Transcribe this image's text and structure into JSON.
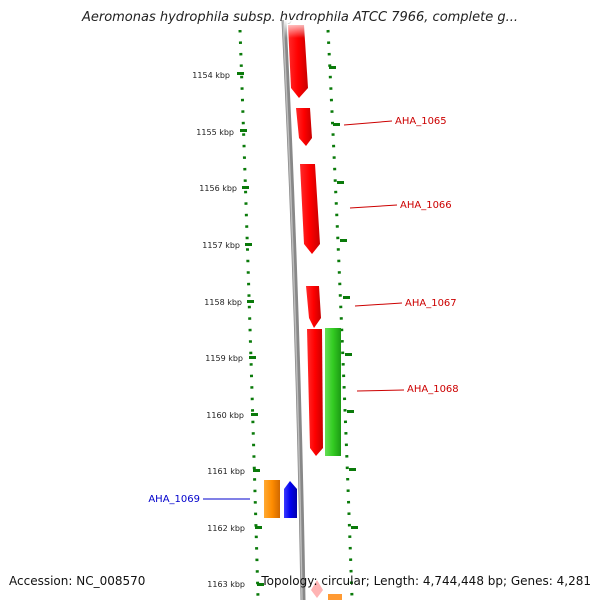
{
  "title": "Aeromonas hydrophila subsp. hydrophila ATCC 7966, complete g...",
  "ruler": {
    "unit": "kbp",
    "ticks": [
      "1154 kbp",
      "1155 kbp",
      "1156 kbp",
      "1157 kbp",
      "1158 kbp",
      "1159 kbp",
      "1160 kbp",
      "1161 kbp",
      "1162 kbp",
      "1163 kbp"
    ]
  },
  "genes": [
    {
      "label": "AHA_1065",
      "color": "#cc0000"
    },
    {
      "label": "AHA_1066",
      "color": "#cc0000"
    },
    {
      "label": "AHA_1067",
      "color": "#cc0000"
    },
    {
      "label": "AHA_1068",
      "color": "#cc0000"
    },
    {
      "label": "AHA_1069",
      "color": "#0000cc"
    }
  ],
  "footer": {
    "accession": "Accession: NC_008570",
    "summary": "Topology: circular; Length: 4,744,448 bp; Genes: 4,281"
  },
  "colors": {
    "forward_strand": "#ff0000",
    "reverse_strand": "#0000ee",
    "rna_gene": "#22bb22",
    "other_feature": "#ff8c00",
    "backbone": "#888888",
    "ruler": "#006600"
  }
}
